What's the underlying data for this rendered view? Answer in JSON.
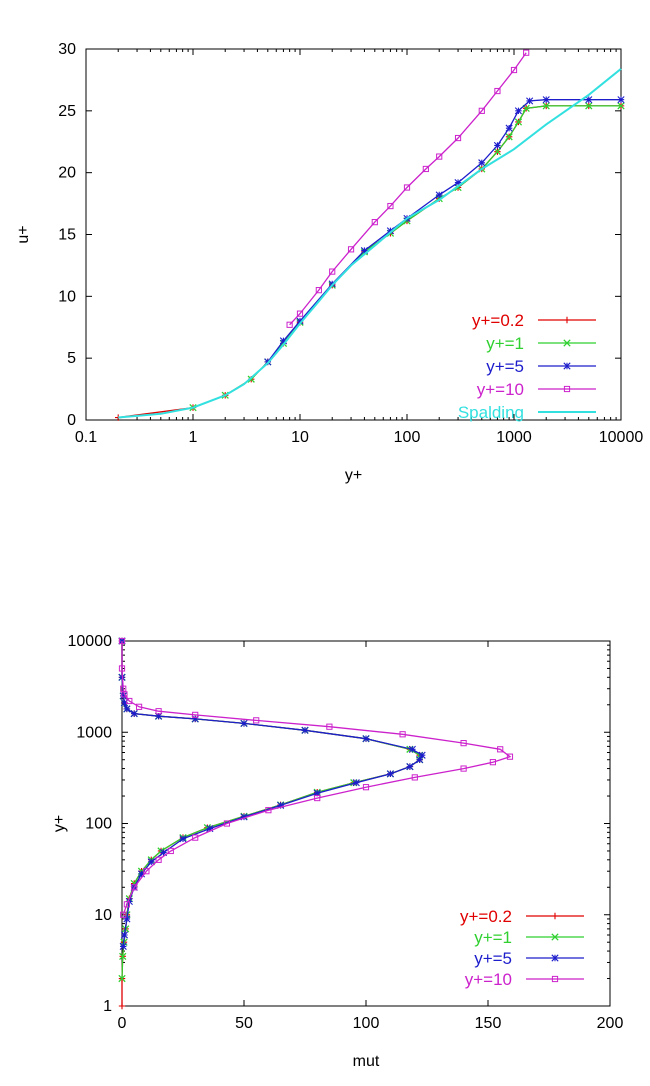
{
  "chart_data": [
    {
      "type": "line",
      "xlabel": "y+",
      "ylabel": "u+",
      "xscale": "log",
      "xlim": [
        0.1,
        10000
      ],
      "ylim": [
        0,
        30
      ],
      "x_ticks": [
        "0.1",
        "1",
        "10",
        "100",
        "1000",
        "10000"
      ],
      "y_ticks": [
        "0",
        "5",
        "10",
        "15",
        "20",
        "25",
        "30"
      ],
      "grid": false,
      "legend_position": "bottom-right",
      "series": [
        {
          "name": "y+=0.2",
          "color": "#e00000",
          "marker": "plus",
          "points": [
            [
              0.2,
              0.2
            ],
            [
              1,
              1
            ],
            [
              2,
              2
            ],
            [
              3.5,
              3.3
            ],
            [
              5,
              4.7
            ],
            [
              7,
              6.2
            ],
            [
              10,
              7.9
            ],
            [
              20,
              10.9
            ],
            [
              40,
              13.6
            ],
            [
              70,
              15.1
            ],
            [
              100,
              16.1
            ],
            [
              200,
              17.9
            ],
            [
              300,
              18.8
            ],
            [
              500,
              20.3
            ],
            [
              700,
              21.7
            ],
            [
              900,
              22.9
            ],
            [
              1100,
              24.1
            ],
            [
              1300,
              25.2
            ],
            [
              2000,
              25.4
            ],
            [
              5000,
              25.4
            ],
            [
              10000,
              25.4
            ]
          ]
        },
        {
          "name": "y+=1",
          "color": "#2fd02f",
          "marker": "cross",
          "points": [
            [
              1,
              1
            ],
            [
              2,
              2
            ],
            [
              3.5,
              3.3
            ],
            [
              5,
              4.7
            ],
            [
              7,
              6.2
            ],
            [
              10,
              7.9
            ],
            [
              20,
              10.9
            ],
            [
              40,
              13.6
            ],
            [
              70,
              15.1
            ],
            [
              100,
              16.1
            ],
            [
              200,
              17.9
            ],
            [
              300,
              18.8
            ],
            [
              500,
              20.3
            ],
            [
              700,
              21.7
            ],
            [
              900,
              22.9
            ],
            [
              1100,
              24.1
            ],
            [
              1300,
              25.2
            ],
            [
              2000,
              25.4
            ],
            [
              5000,
              25.4
            ],
            [
              10000,
              25.4
            ]
          ]
        },
        {
          "name": "y+=5",
          "color": "#1d1dcc",
          "marker": "star",
          "points": [
            [
              5,
              4.7
            ],
            [
              7,
              6.4
            ],
            [
              10,
              8.0
            ],
            [
              20,
              11.0
            ],
            [
              40,
              13.7
            ],
            [
              70,
              15.3
            ],
            [
              100,
              16.3
            ],
            [
              200,
              18.2
            ],
            [
              300,
              19.2
            ],
            [
              500,
              20.8
            ],
            [
              700,
              22.2
            ],
            [
              900,
              23.6
            ],
            [
              1100,
              25.0
            ],
            [
              1400,
              25.8
            ],
            [
              2000,
              25.9
            ],
            [
              5000,
              25.9
            ],
            [
              10000,
              25.9
            ]
          ]
        },
        {
          "name": "y+=10",
          "color": "#cc22cc",
          "marker": "square",
          "points": [
            [
              8,
              7.7
            ],
            [
              10,
              8.6
            ],
            [
              15,
              10.5
            ],
            [
              20,
              12.0
            ],
            [
              30,
              13.8
            ],
            [
              50,
              16.0
            ],
            [
              70,
              17.3
            ],
            [
              100,
              18.8
            ],
            [
              150,
              20.3
            ],
            [
              200,
              21.3
            ],
            [
              300,
              22.8
            ],
            [
              500,
              25.0
            ],
            [
              700,
              26.6
            ],
            [
              1000,
              28.3
            ],
            [
              1300,
              29.7
            ]
          ]
        },
        {
          "name": "Spalding",
          "color": "#33e0e0",
          "marker": "none",
          "points": [
            [
              0.2,
              0.2
            ],
            [
              0.5,
              0.5
            ],
            [
              1,
              1
            ],
            [
              2,
              2
            ],
            [
              3,
              2.9
            ],
            [
              5,
              4.6
            ],
            [
              7,
              6.1
            ],
            [
              10,
              7.8
            ],
            [
              15,
              9.6
            ],
            [
              20,
              10.9
            ],
            [
              30,
              12.5
            ],
            [
              50,
              14.1
            ],
            [
              100,
              16.3
            ],
            [
              200,
              17.8
            ],
            [
              500,
              20.3
            ],
            [
              1000,
              21.9
            ],
            [
              2000,
              23.9
            ],
            [
              5000,
              26.3
            ],
            [
              10000,
              28.4
            ]
          ]
        }
      ]
    },
    {
      "type": "line",
      "xlabel": "mut",
      "ylabel": "y+",
      "yscale": "log",
      "xlim": [
        0,
        200
      ],
      "ylim": [
        1,
        10000
      ],
      "x_ticks": [
        "0",
        "50",
        "100",
        "150",
        "200"
      ],
      "y_ticks": [
        "1",
        "10",
        "100",
        "1000",
        "10000"
      ],
      "grid": false,
      "legend_position": "bottom-right",
      "series": [
        {
          "name": "y+=0.2",
          "color": "#e00000",
          "marker": "plus",
          "points": [
            [
              0,
              1
            ],
            [
              0,
              2
            ],
            [
              0.3,
              3.5
            ],
            [
              0.8,
              5
            ],
            [
              1.5,
              7
            ],
            [
              2,
              10
            ],
            [
              3,
              15
            ],
            [
              5,
              22
            ],
            [
              8,
              30
            ],
            [
              12,
              40
            ],
            [
              16,
              50
            ],
            [
              25,
              70
            ],
            [
              35,
              90
            ],
            [
              50,
              120
            ],
            [
              65,
              160
            ],
            [
              80,
              220
            ],
            [
              95,
              280
            ],
            [
              110,
              350
            ],
            [
              118,
              420
            ],
            [
              122,
              500
            ],
            [
              122,
              560
            ],
            [
              118,
              650
            ],
            [
              100,
              850
            ],
            [
              75,
              1050
            ],
            [
              50,
              1250
            ],
            [
              30,
              1400
            ],
            [
              15,
              1500
            ],
            [
              5,
              1600
            ],
            [
              2,
              1800
            ],
            [
              1,
              2100
            ],
            [
              0.5,
              2500
            ],
            [
              0,
              4000
            ],
            [
              0,
              10000
            ]
          ]
        },
        {
          "name": "y+=1",
          "color": "#2fd02f",
          "marker": "cross",
          "points": [
            [
              0,
              2
            ],
            [
              0.3,
              3.5
            ],
            [
              0.8,
              5
            ],
            [
              1.5,
              7
            ],
            [
              2,
              10
            ],
            [
              3,
              15
            ],
            [
              5,
              22
            ],
            [
              8,
              30
            ],
            [
              12,
              40
            ],
            [
              16,
              50
            ],
            [
              25,
              70
            ],
            [
              35,
              90
            ],
            [
              50,
              120
            ],
            [
              65,
              160
            ],
            [
              80,
              220
            ],
            [
              95,
              280
            ],
            [
              110,
              350
            ],
            [
              118,
              420
            ],
            [
              122,
              500
            ],
            [
              122,
              560
            ],
            [
              118,
              650
            ],
            [
              100,
              850
            ],
            [
              75,
              1050
            ],
            [
              50,
              1250
            ],
            [
              30,
              1400
            ],
            [
              15,
              1500
            ],
            [
              5,
              1600
            ],
            [
              2,
              1800
            ],
            [
              1,
              2100
            ],
            [
              0.5,
              2500
            ],
            [
              0,
              4000
            ],
            [
              0,
              10000
            ]
          ]
        },
        {
          "name": "y+=5",
          "color": "#1d1dcc",
          "marker": "star",
          "points": [
            [
              0.5,
              4.5
            ],
            [
              1,
              6
            ],
            [
              2,
              9
            ],
            [
              3,
              14
            ],
            [
              5,
              20
            ],
            [
              8,
              28
            ],
            [
              12,
              38
            ],
            [
              17,
              48
            ],
            [
              25,
              68
            ],
            [
              36,
              88
            ],
            [
              50,
              118
            ],
            [
              65,
              158
            ],
            [
              80,
              215
            ],
            [
              96,
              280
            ],
            [
              110,
              350
            ],
            [
              118,
              420
            ],
            [
              122,
              500
            ],
            [
              123,
              560
            ],
            [
              119,
              650
            ],
            [
              100,
              850
            ],
            [
              75,
              1050
            ],
            [
              50,
              1250
            ],
            [
              30,
              1400
            ],
            [
              15,
              1500
            ],
            [
              5,
              1600
            ],
            [
              2,
              1800
            ],
            [
              1,
              2100
            ],
            [
              0.5,
              2500
            ],
            [
              0,
              4000
            ],
            [
              0,
              10000
            ]
          ]
        },
        {
          "name": "y+=10",
          "color": "#cc22cc",
          "marker": "square",
          "points": [
            [
              0.5,
              10
            ],
            [
              2,
              13
            ],
            [
              5,
              20
            ],
            [
              10,
              30
            ],
            [
              15,
              40
            ],
            [
              20,
              50
            ],
            [
              30,
              70
            ],
            [
              43,
              100
            ],
            [
              60,
              140
            ],
            [
              80,
              190
            ],
            [
              100,
              250
            ],
            [
              120,
              320
            ],
            [
              140,
              400
            ],
            [
              152,
              470
            ],
            [
              159,
              540
            ],
            [
              155,
              650
            ],
            [
              140,
              760
            ],
            [
              115,
              950
            ],
            [
              85,
              1150
            ],
            [
              55,
              1350
            ],
            [
              30,
              1550
            ],
            [
              15,
              1700
            ],
            [
              7,
              1900
            ],
            [
              3,
              2200
            ],
            [
              1,
              2600
            ],
            [
              0.5,
              3000
            ],
            [
              0,
              5000
            ],
            [
              0,
              10000
            ]
          ]
        }
      ]
    }
  ]
}
